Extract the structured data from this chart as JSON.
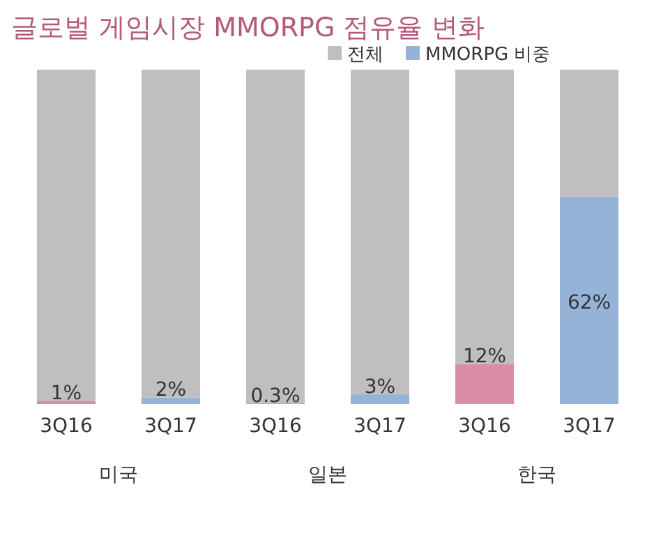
{
  "chart_data": {
    "type": "bar",
    "title": "글로벌 게임시장 MMORPG 점유율 변화",
    "stacked": true,
    "legend": "top",
    "categories": [
      "3Q16",
      "3Q17",
      "3Q16",
      "3Q17",
      "3Q16",
      "3Q17"
    ],
    "series": [
      {
        "name": "MMORPG 비중",
        "color": "#95b3d7",
        "colors": [
          "#d98ca6",
          "#95b3d7",
          "#d98ca6",
          "#95b3d7",
          "#d98ca6",
          "#95b3d7"
        ],
        "values": [
          1,
          2,
          0.3,
          3,
          12,
          62
        ],
        "value_labels": [
          "1%",
          "2%",
          "0.3%",
          "3%",
          "12%",
          "62%"
        ]
      },
      {
        "name": "전체",
        "color": "#bfbfbf",
        "values": [
          99,
          98,
          99.7,
          97,
          88,
          38
        ]
      }
    ],
    "annotations": [
      "미국",
      "일본",
      "한국"
    ]
  }
}
